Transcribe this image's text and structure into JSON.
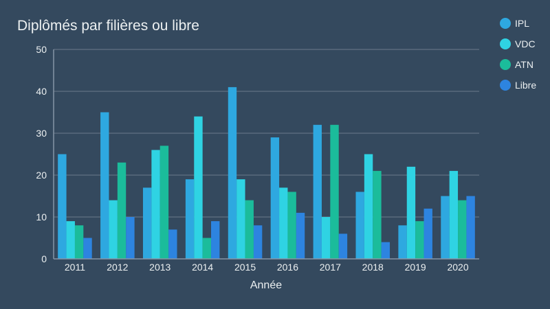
{
  "chart_data": {
    "type": "bar",
    "title": "Diplômés par filières ou libre",
    "xlabel": "Année",
    "ylabel": "",
    "ylim": [
      0,
      50
    ],
    "yticks": [
      0,
      10,
      20,
      30,
      40,
      50
    ],
    "grid": true,
    "legend_position": "right",
    "categories": [
      "2011",
      "2012",
      "2013",
      "2014",
      "2015",
      "2016",
      "2017",
      "2018",
      "2019",
      "2020"
    ],
    "series": [
      {
        "name": "IPL",
        "color": "#2ea8e0",
        "values": [
          25,
          35,
          17,
          19,
          41,
          29,
          32,
          16,
          8,
          15
        ]
      },
      {
        "name": "VDC",
        "color": "#2fd3e3",
        "values": [
          9,
          14,
          26,
          34,
          19,
          17,
          10,
          25,
          22,
          21
        ]
      },
      {
        "name": "ATN",
        "color": "#1bbc9b",
        "values": [
          8,
          23,
          27,
          5,
          14,
          16,
          32,
          21,
          9,
          14
        ]
      },
      {
        "name": "Libre",
        "color": "#2d84e0",
        "values": [
          5,
          10,
          7,
          9,
          8,
          11,
          6,
          4,
          12,
          15
        ]
      }
    ]
  },
  "colors": {
    "background": "#34495e",
    "grid": "#6b7b8c",
    "text": "#ecf0f1"
  }
}
